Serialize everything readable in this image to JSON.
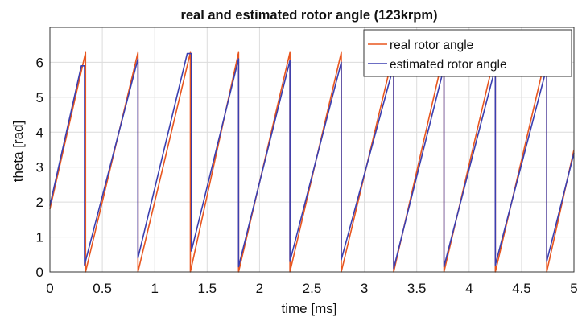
{
  "chart_data": {
    "type": "line",
    "title": "real and estimated rotor angle (123krpm)",
    "xlabel": "time [ms]",
    "ylabel": "theta [rad]",
    "xlim": [
      0,
      5
    ],
    "ylim": [
      0,
      7
    ],
    "xticks": [
      "0",
      "0.5",
      "1",
      "1.5",
      "2",
      "2.5",
      "3",
      "3.5",
      "4",
      "4.5",
      "5"
    ],
    "xtick_values": [
      0,
      0.5,
      1,
      1.5,
      2,
      2.5,
      3,
      3.5,
      4,
      4.5,
      5
    ],
    "yticks": [
      "0",
      "1",
      "2",
      "3",
      "4",
      "5",
      "6"
    ],
    "ytick_values": [
      0,
      1,
      2,
      3,
      4,
      5,
      6
    ],
    "grid": true,
    "legend_position": "top-right",
    "series": [
      {
        "name": "real rotor angle",
        "color": "#e8561f",
        "shape": "sawtooth",
        "x": [
          0,
          0.34,
          0.34,
          0.84,
          0.84,
          1.34,
          1.34,
          1.8,
          1.8,
          2.29,
          2.29,
          2.78,
          2.78,
          3.28,
          3.28,
          3.76,
          3.76,
          4.25,
          4.25,
          4.74,
          4.74,
          5.0
        ],
        "y": [
          1.8,
          6.28,
          0.0,
          6.28,
          0.0,
          6.28,
          0.0,
          6.28,
          0.0,
          6.28,
          0.0,
          6.28,
          0.0,
          6.28,
          0.0,
          6.28,
          0.0,
          6.28,
          0.0,
          6.28,
          0.0,
          3.5
        ]
      },
      {
        "name": "estimated rotor angle",
        "color": "#3b3fb0",
        "shape": "staircase sawtooth",
        "x": [
          0,
          0.3,
          0.33,
          0.33,
          0.84,
          0.84,
          1.31,
          1.35,
          1.35,
          1.8,
          1.8,
          2.29,
          2.29,
          2.78,
          2.78,
          3.28,
          3.28,
          3.76,
          3.76,
          4.25,
          4.25,
          4.74,
          4.74,
          5.0
        ],
        "y": [
          1.9,
          5.9,
          5.9,
          0.2,
          6.1,
          0.4,
          6.25,
          6.25,
          0.6,
          6.1,
          0.15,
          6.05,
          0.3,
          6.0,
          0.35,
          5.9,
          0.1,
          5.85,
          0.15,
          5.85,
          0.2,
          5.85,
          0.3,
          3.4
        ]
      }
    ]
  }
}
